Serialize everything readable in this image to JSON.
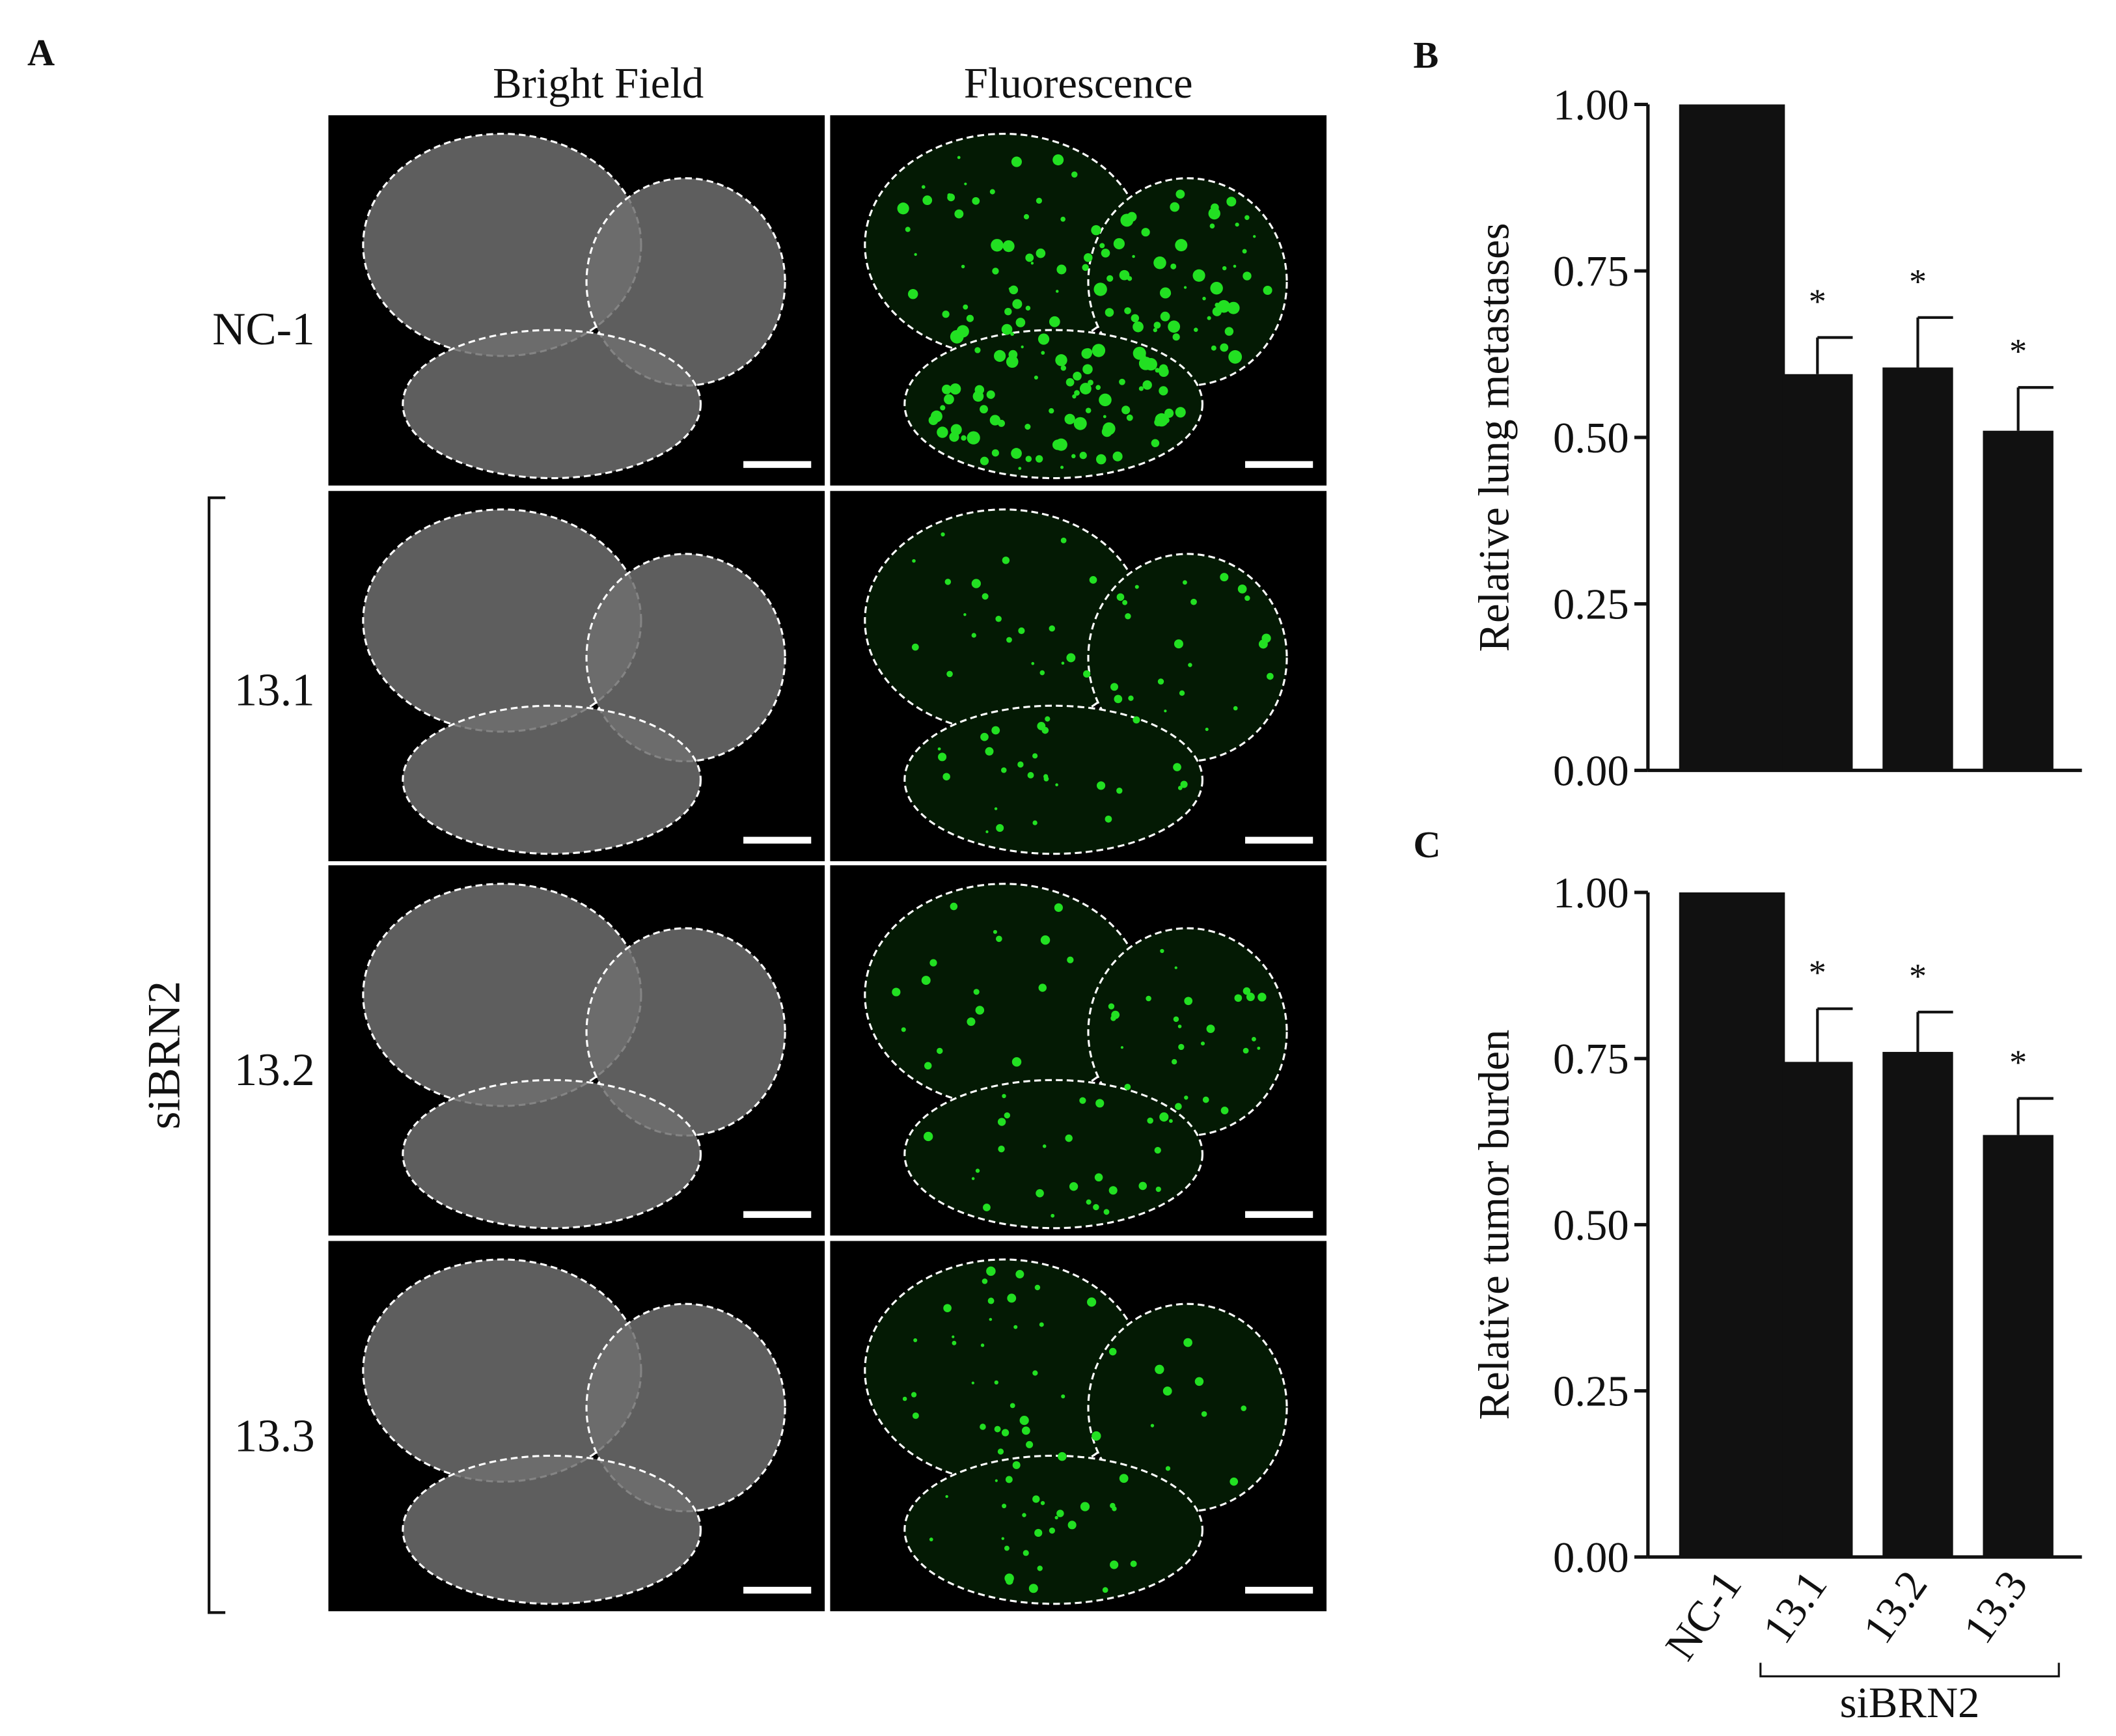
{
  "panel_a": {
    "label": "A",
    "columns": [
      "Bright Field",
      "Fluorescence"
    ],
    "rows": [
      "NC-1",
      "13.1",
      "13.2",
      "13.3"
    ],
    "group_label": "siBRN2"
  },
  "chart_data": [
    {
      "type": "bar",
      "panel_label": "B",
      "ylabel": "Relative lung metastases",
      "categories": [
        null,
        null,
        null,
        null
      ],
      "values": [
        1.0,
        0.595,
        0.605,
        0.51
      ],
      "errors": [
        null,
        0.055,
        0.075,
        0.065
      ],
      "significance": [
        null,
        "*",
        "*",
        "*"
      ],
      "color": "#111111",
      "ylim": [
        0,
        1
      ],
      "yticks": [
        {
          "value": 0,
          "label": "0.00"
        },
        {
          "value": 0.25,
          "label": "0.25"
        },
        {
          "value": 0.5,
          "label": "0.50"
        },
        {
          "value": 0.75,
          "label": "0.75"
        },
        {
          "value": 1,
          "label": "1.00"
        }
      ]
    },
    {
      "type": "bar",
      "panel_label": "C",
      "ylabel": "Relative tumor burden",
      "categories": [
        "NC-1",
        "13.1",
        "13.2",
        "13.3"
      ],
      "group_label": "siBRN2",
      "values": [
        1.0,
        0.745,
        0.76,
        0.635
      ],
      "errors": [
        null,
        0.08,
        0.06,
        0.055
      ],
      "significance": [
        null,
        "*",
        "*",
        "*"
      ],
      "color": "#111111",
      "ylim": [
        0,
        1
      ],
      "yticks": [
        {
          "value": 0,
          "label": "0.00"
        },
        {
          "value": 0.25,
          "label": "0.25"
        },
        {
          "value": 0.5,
          "label": "0.50"
        },
        {
          "value": 0.75,
          "label": "0.75"
        },
        {
          "value": 1,
          "label": "1.00"
        }
      ]
    }
  ]
}
